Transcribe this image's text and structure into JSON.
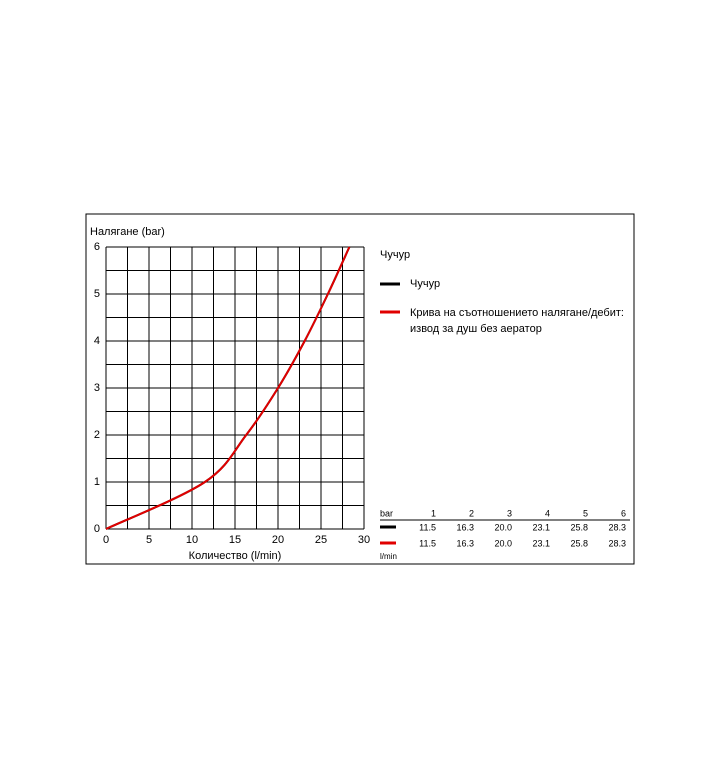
{
  "chart_data": {
    "type": "line",
    "ylabel": "Налягане (bar)",
    "xlabel": "Количество (l/min)",
    "x": [
      0,
      11.5,
      16.3,
      20.0,
      23.1,
      25.8,
      28.3
    ],
    "series": [
      {
        "name": "Чучур",
        "color": "#000000",
        "values": [
          0,
          1,
          2,
          3,
          4,
          5,
          6
        ]
      },
      {
        "name": "Крива на съотношението налягане/дебит: извод за душ без аератор",
        "color": "#e00000",
        "values": [
          0,
          1,
          2,
          3,
          4,
          5,
          6
        ]
      }
    ],
    "legend_title": "Чучур",
    "xlim": [
      0,
      30
    ],
    "ylim": [
      0,
      6
    ],
    "xticks": [
      0,
      5,
      10,
      15,
      20,
      25,
      30
    ],
    "yticks": [
      0,
      1,
      2,
      3,
      4,
      5,
      6
    ],
    "xgrid": [
      0,
      2.5,
      5,
      7.5,
      10,
      12.5,
      15,
      17.5,
      20,
      22.5,
      25,
      27.5,
      30
    ],
    "ygrid": [
      0,
      0.5,
      1,
      1.5,
      2,
      2.5,
      3,
      3.5,
      4,
      4.5,
      5,
      5.5,
      6
    ],
    "grid": true
  },
  "table": {
    "header_unit": "bar",
    "columns": [
      "1",
      "2",
      "3",
      "4",
      "5",
      "6"
    ],
    "rows": [
      {
        "color": "#000000",
        "cells": [
          "11.5",
          "16.3",
          "20.0",
          "23.1",
          "25.8",
          "28.3"
        ]
      },
      {
        "color": "#e00000",
        "cells": [
          "11.5",
          "16.3",
          "20.0",
          "23.1",
          "25.8",
          "28.3"
        ]
      }
    ],
    "footer_unit": "l/min"
  }
}
